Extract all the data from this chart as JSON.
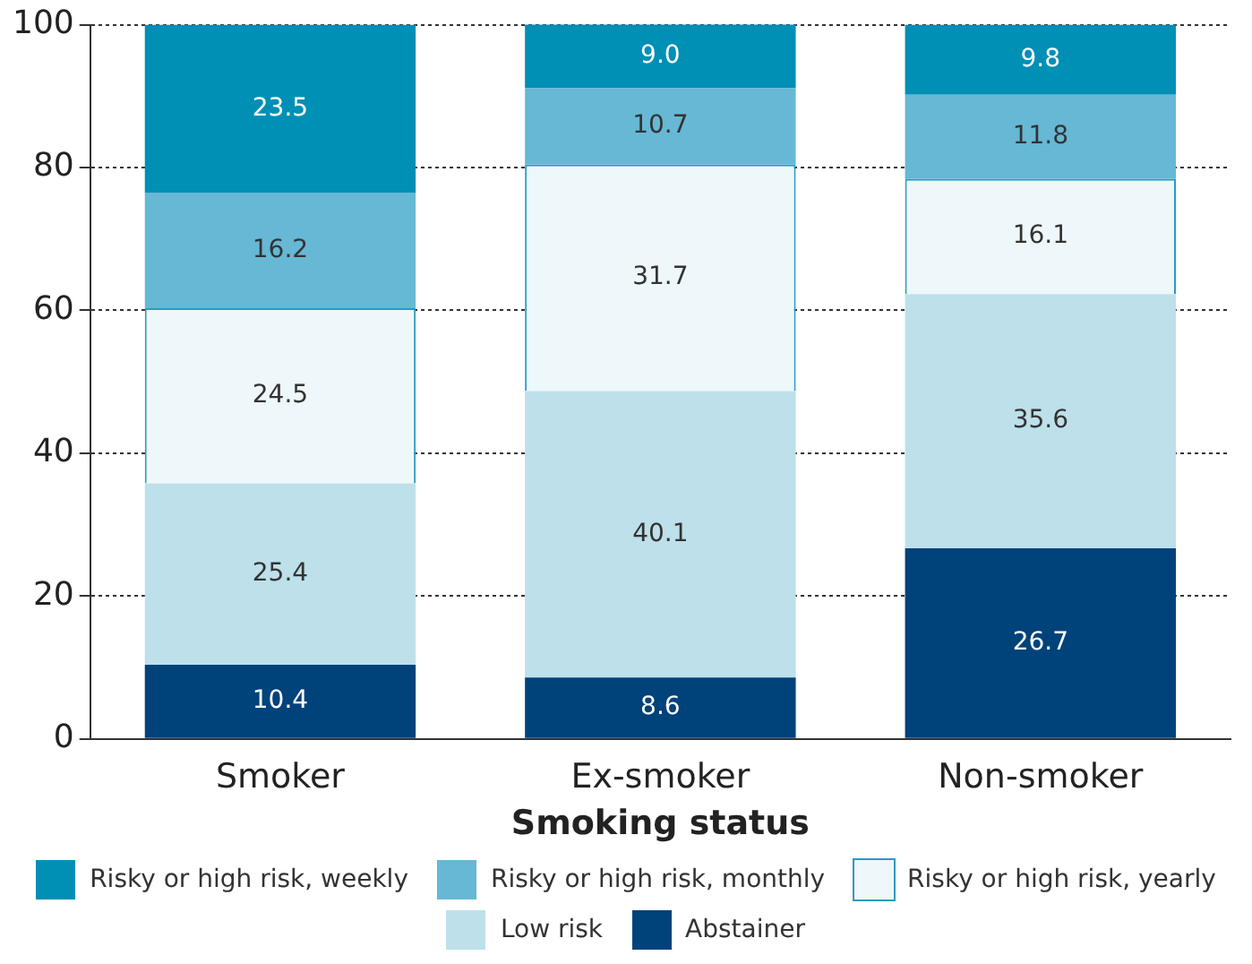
{
  "chart_data": {
    "type": "bar",
    "stacked": true,
    "xlabel": "Smoking status",
    "categories": [
      "Smoker",
      "Ex-smoker",
      "Non-smoker"
    ],
    "series": [
      {
        "name": "Abstainer",
        "color": "#00427a",
        "values": [
          10.4,
          8.6,
          26.7
        ],
        "value_labels": [
          "10.4",
          "8.6",
          "26.7"
        ]
      },
      {
        "name": "Low risk",
        "color": "#bde0ea",
        "values": [
          25.4,
          40.1,
          35.6
        ],
        "value_labels": [
          "25.4",
          "40.1",
          "35.6"
        ]
      },
      {
        "name": "Risky or high risk, yearly",
        "color": "#eef7fa",
        "values": [
          24.5,
          31.7,
          16.1
        ],
        "value_labels": [
          "24.5",
          "31.7",
          "16.1"
        ]
      },
      {
        "name": "Risky or high risk, monthly",
        "color": "#66b8d4",
        "values": [
          16.2,
          10.7,
          11.8
        ],
        "value_labels": [
          "16.2",
          "10.7",
          "11.8"
        ]
      },
      {
        "name": "Risky or high risk, weekly",
        "color": "#008fb5",
        "values": [
          23.5,
          9.0,
          9.8
        ],
        "value_labels": [
          "23.5",
          "9.0",
          "9.8"
        ]
      }
    ],
    "ylim": [
      0,
      100
    ],
    "yticks": [
      0,
      20,
      40,
      60,
      80,
      100
    ],
    "grid": "y",
    "legend": "bottom"
  }
}
